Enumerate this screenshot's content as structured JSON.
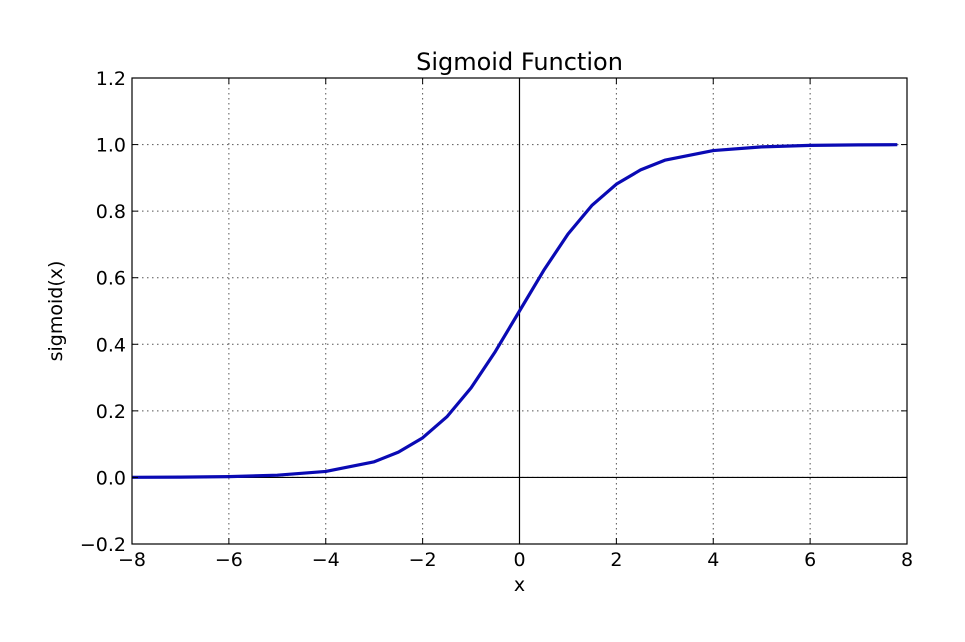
{
  "chart_data": {
    "type": "line",
    "title": "Sigmoid Function",
    "xlabel": "x",
    "ylabel": "sigmoid(x)",
    "xlim": [
      -8,
      8
    ],
    "ylim": [
      -0.2,
      1.2
    ],
    "x_ticks": [
      -8,
      -6,
      -4,
      -2,
      0,
      2,
      4,
      6,
      8
    ],
    "x_tick_labels": [
      "−8",
      "−6",
      "−4",
      "−2",
      "0",
      "2",
      "4",
      "6",
      "8"
    ],
    "y_ticks": [
      -0.2,
      0.0,
      0.2,
      0.4,
      0.6,
      0.8,
      1.0,
      1.2
    ],
    "y_tick_labels": [
      "−0.2",
      "0.0",
      "0.2",
      "0.4",
      "0.6",
      "0.8",
      "1.0",
      "1.2"
    ],
    "grid": true,
    "zero_lines": true,
    "series": [
      {
        "color": "#0a0ab4",
        "x": [
          -8,
          -7,
          -6,
          -5,
          -4,
          -3,
          -2.5,
          -2,
          -1.5,
          -1,
          -0.5,
          0,
          0.5,
          1,
          1.5,
          2,
          2.5,
          3,
          4,
          5,
          6,
          7,
          7.8
        ],
        "y": [
          0.0003,
          0.0009,
          0.0025,
          0.0067,
          0.018,
          0.047,
          0.076,
          0.119,
          0.182,
          0.269,
          0.378,
          0.5,
          0.622,
          0.731,
          0.818,
          0.881,
          0.924,
          0.953,
          0.982,
          0.993,
          0.9975,
          0.9991,
          0.9996
        ]
      }
    ]
  }
}
